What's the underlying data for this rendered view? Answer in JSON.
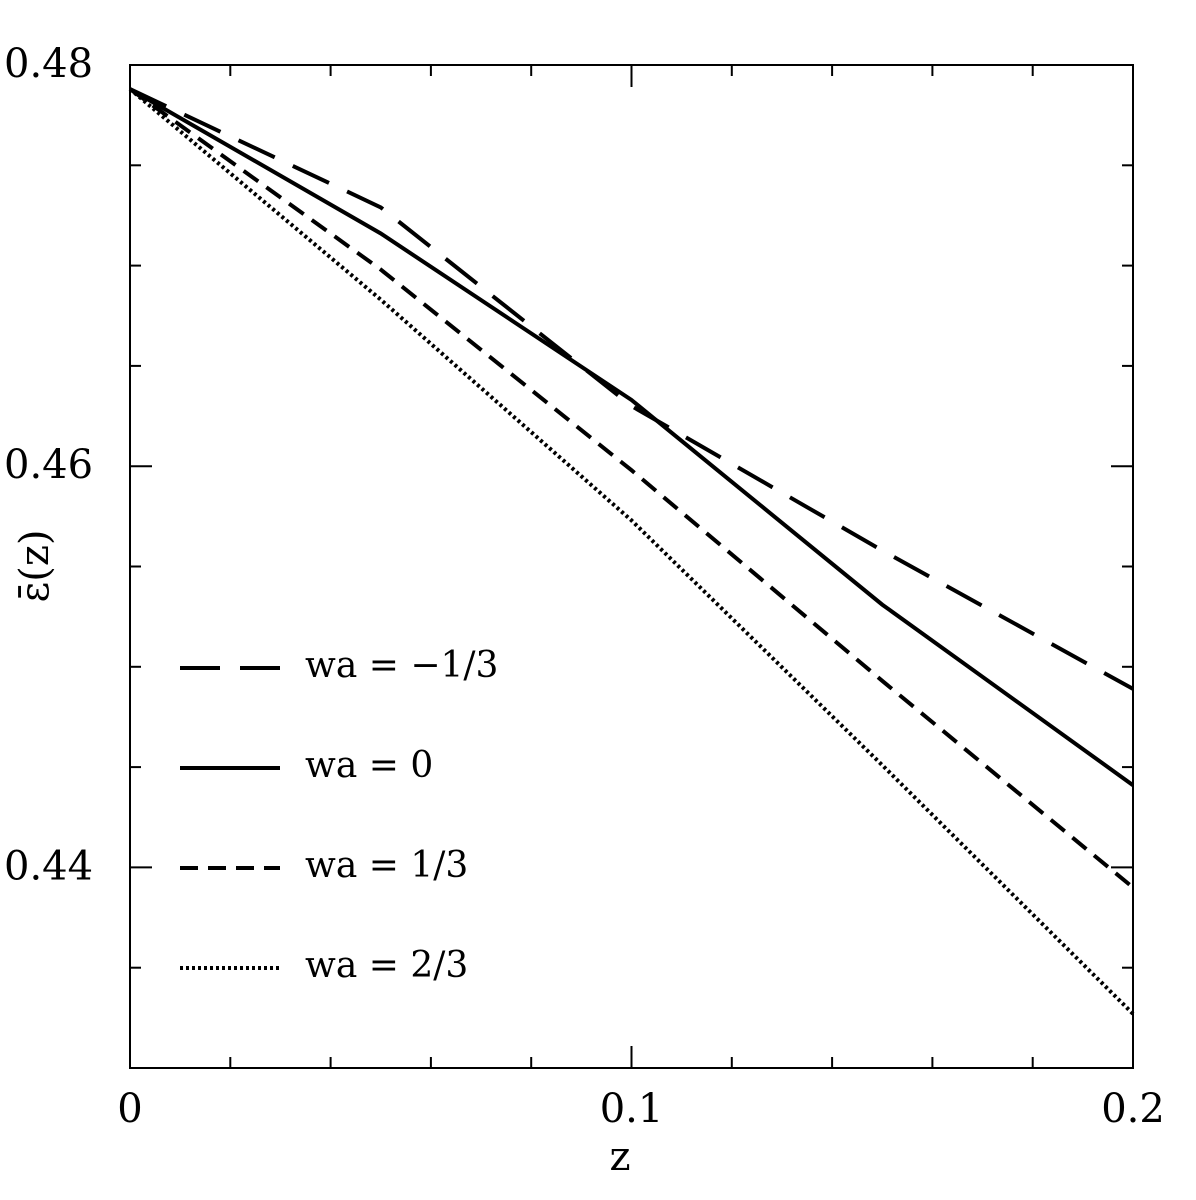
{
  "chart_data": {
    "type": "line",
    "x_label": "z",
    "y_label": "ε̄(z)",
    "x": [
      0,
      0.05,
      0.1,
      0.15,
      0.2
    ],
    "series": [
      {
        "name": "wa = −1/3",
        "color": "#000000",
        "dash": "40,20",
        "values": [
          0.4788,
          0.4729,
          0.463,
          0.4558,
          0.4489
        ]
      },
      {
        "name": "wa = 0",
        "color": "#000000",
        "dash": "none",
        "values": [
          0.4788,
          0.4716,
          0.4633,
          0.4531,
          0.4441
        ]
      },
      {
        "name": "wa = 1/3",
        "color": "#000000",
        "dash": "18,10",
        "values": [
          0.4788,
          0.4698,
          0.4598,
          0.4493,
          0.439
        ]
      },
      {
        "name": "wa = 2/3",
        "color": "#000000",
        "dash": "3,3",
        "values": [
          0.4788,
          0.4683,
          0.4573,
          0.4451,
          0.4327
        ]
      }
    ],
    "xlim": [
      0,
      0.2
    ],
    "ylim": [
      0.43,
      0.48
    ],
    "xticks": [
      0,
      0.1,
      0.2
    ],
    "yticks": [
      0.44,
      0.46,
      0.48
    ],
    "minor_xticks": [
      0.02,
      0.04,
      0.06,
      0.08,
      0.12,
      0.14,
      0.16,
      0.18
    ],
    "minor_yticks": [
      0.435,
      0.445,
      0.45,
      0.455,
      0.465,
      0.47,
      0.475
    ],
    "grid": false,
    "legend": "lower left"
  }
}
